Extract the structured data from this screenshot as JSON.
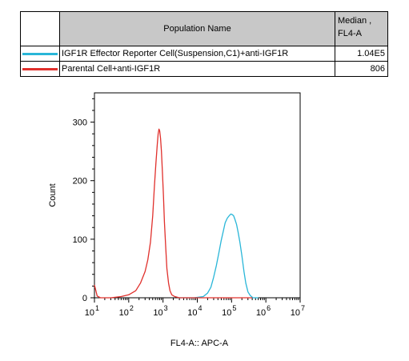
{
  "legend": {
    "header": {
      "name": "Population Name",
      "value_line1": "Median ,",
      "value_line2": "FL4-A"
    },
    "rows": [
      {
        "name": "IGF1R Effector Reporter Cell(Suspension,C1)+anti-IGF1R",
        "value": "1.04E5",
        "color": "#29b6d8"
      },
      {
        "name": "Parental Cell+anti-IGF1R",
        "value": "806",
        "color": "#e0302c"
      }
    ]
  },
  "chart_data": {
    "type": "area",
    "xlabel": "FL4-A:: APC-A",
    "ylabel": "Count",
    "x_scale": "log10",
    "xlim": [
      10,
      10000000
    ],
    "ylim": [
      0,
      350
    ],
    "x_tick_labels": [
      {
        "base": "10",
        "exp": "1"
      },
      {
        "base": "10",
        "exp": "2"
      },
      {
        "base": "10",
        "exp": "3"
      },
      {
        "base": "10",
        "exp": "4"
      },
      {
        "base": "10",
        "exp": "5"
      },
      {
        "base": "10",
        "exp": "6"
      },
      {
        "base": "10",
        "exp": "7"
      }
    ],
    "y_ticks": [
      0,
      100,
      200,
      300
    ],
    "grid": false,
    "series": [
      {
        "name": "Parental Cell+anti-IGF1R",
        "color": "#e0302c",
        "points": [
          [
            10,
            22
          ],
          [
            12,
            3
          ],
          [
            15,
            0
          ],
          [
            30,
            0
          ],
          [
            60,
            2
          ],
          [
            100,
            5
          ],
          [
            160,
            12
          ],
          [
            220,
            25
          ],
          [
            300,
            45
          ],
          [
            360,
            65
          ],
          [
            430,
            95
          ],
          [
            500,
            140
          ],
          [
            560,
            190
          ],
          [
            620,
            230
          ],
          [
            680,
            262
          ],
          [
            720,
            280
          ],
          [
            760,
            288
          ],
          [
            800,
            285
          ],
          [
            850,
            272
          ],
          [
            900,
            250
          ],
          [
            960,
            215
          ],
          [
            1030,
            175
          ],
          [
            1100,
            130
          ],
          [
            1200,
            85
          ],
          [
            1300,
            50
          ],
          [
            1450,
            25
          ],
          [
            1600,
            12
          ],
          [
            1800,
            5
          ],
          [
            2200,
            2
          ],
          [
            3000,
            0
          ],
          [
            200000,
            0
          ],
          [
            400000,
            0
          ]
        ]
      },
      {
        "name": "IGF1R Effector Reporter Cell(Suspension,C1)+anti-IGF1R",
        "color": "#29b6d8",
        "points": [
          [
            3000,
            0
          ],
          [
            8000,
            0
          ],
          [
            15000,
            2
          ],
          [
            20000,
            8
          ],
          [
            25000,
            18
          ],
          [
            30000,
            35
          ],
          [
            36000,
            55
          ],
          [
            42000,
            75
          ],
          [
            50000,
            98
          ],
          [
            58000,
            115
          ],
          [
            65000,
            128
          ],
          [
            75000,
            136
          ],
          [
            85000,
            140
          ],
          [
            95000,
            143
          ],
          [
            105000,
            142
          ],
          [
            115000,
            140
          ],
          [
            125000,
            134
          ],
          [
            140000,
            125
          ],
          [
            155000,
            112
          ],
          [
            175000,
            95
          ],
          [
            200000,
            72
          ],
          [
            230000,
            45
          ],
          [
            260000,
            25
          ],
          [
            300000,
            10
          ],
          [
            350000,
            4
          ],
          [
            420000,
            0
          ],
          [
            600000,
            0
          ]
        ]
      }
    ]
  }
}
